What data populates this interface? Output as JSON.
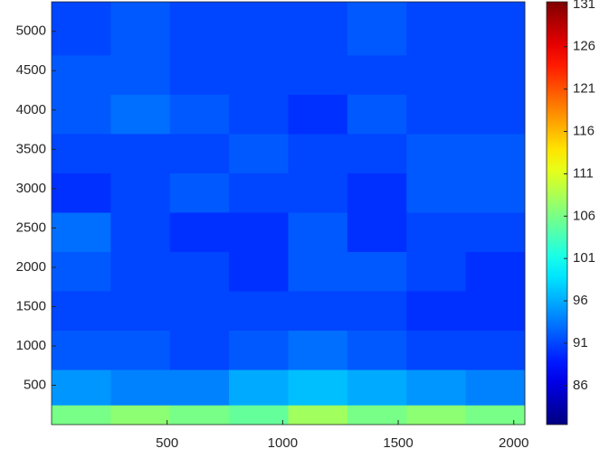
{
  "chart_data": {
    "type": "heatmap",
    "colormap": "jet",
    "xlim": [
      0,
      2048
    ],
    "xticks": [
      500,
      1000,
      1500,
      2000
    ],
    "ylim": [
      0,
      5376
    ],
    "yticks": [
      500,
      1000,
      1500,
      2000,
      2500,
      3000,
      3500,
      4000,
      4500,
      5000
    ],
    "clim": [
      81.4,
      131.3
    ],
    "cticks": [
      86,
      91,
      96,
      101,
      106,
      111,
      116,
      121,
      126,
      131
    ],
    "x_edges": [
      0,
      256,
      512,
      768,
      1024,
      1280,
      1536,
      1792,
      2048
    ],
    "y_edges": [
      0,
      250,
      700,
      1200,
      1700,
      2200,
      2700,
      3200,
      3700,
      4200,
      4700,
      5376
    ],
    "z": [
      [
        106,
        107,
        106,
        105,
        108,
        106,
        107,
        106
      ],
      [
        95,
        94,
        94,
        96,
        97,
        96,
        95,
        94
      ],
      [
        92,
        92,
        91,
        92,
        93,
        92,
        91,
        91
      ],
      [
        91,
        91,
        91,
        91,
        91,
        91,
        90,
        90
      ],
      [
        92,
        91,
        91,
        90,
        92,
        92,
        91,
        90
      ],
      [
        93,
        91,
        90,
        90,
        92,
        90,
        91,
        91
      ],
      [
        90,
        91,
        92,
        91,
        91,
        90,
        92,
        92
      ],
      [
        91,
        91,
        91,
        92,
        91,
        91,
        92,
        92
      ],
      [
        92,
        93,
        92,
        91,
        90,
        92,
        91,
        91
      ],
      [
        92,
        92,
        91,
        91,
        91,
        91,
        91,
        91
      ],
      [
        91,
        92,
        91,
        91,
        91,
        92,
        91,
        91
      ]
    ]
  }
}
